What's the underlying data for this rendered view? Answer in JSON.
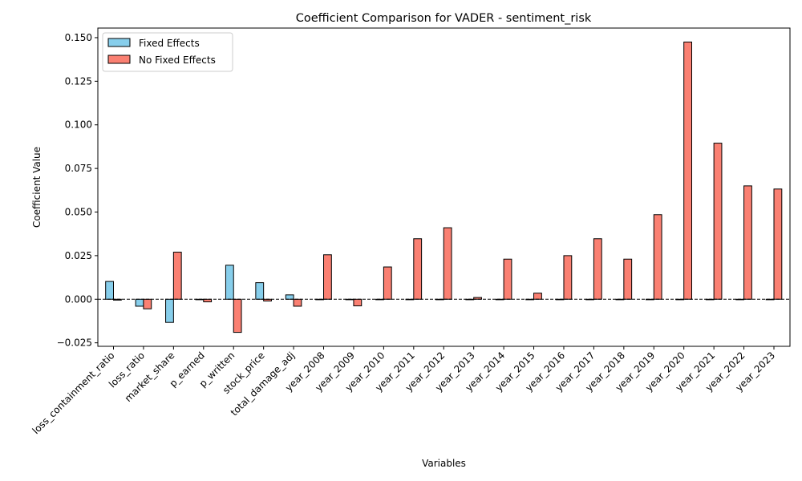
{
  "chart_data": {
    "type": "bar",
    "title": "Coefficient Comparison for VADER - sentiment_risk",
    "xlabel": "Variables",
    "ylabel": "Coefficient Value",
    "ylim": [
      -0.027,
      0.1555
    ],
    "yticks": [
      "−0.025",
      "0.000",
      "0.025",
      "0.050",
      "0.075",
      "0.100",
      "0.125",
      "0.150"
    ],
    "ytick_values": [
      -0.025,
      0,
      0.025,
      0.05,
      0.075,
      0.1,
      0.125,
      0.15
    ],
    "grid": false,
    "legend_position": "top-left",
    "zero_line": "dashed",
    "categories": [
      "loss_containment_ratio",
      "loss_ratio",
      "market_share",
      "p_earned",
      "p_written",
      "stock_price",
      "total_damage_adj",
      "year_2008",
      "year_2009",
      "year_2010",
      "year_2011",
      "year_2012",
      "year_2013",
      "year_2014",
      "year_2015",
      "year_2016",
      "year_2017",
      "year_2018",
      "year_2019",
      "year_2020",
      "year_2021",
      "year_2022",
      "year_2023"
    ],
    "series": [
      {
        "name": "Fixed Effects",
        "color": "#87ceeb",
        "values": [
          0.0102,
          -0.004,
          -0.0133,
          -0.0002,
          0.0195,
          0.0095,
          0.0025,
          0,
          0,
          0,
          0,
          0,
          0,
          0,
          0,
          0,
          0,
          0,
          0,
          0,
          0,
          0,
          0
        ]
      },
      {
        "name": "No Fixed Effects",
        "color": "#fa8072",
        "values": [
          -0.0005,
          -0.0055,
          0.027,
          -0.0015,
          -0.019,
          -0.001,
          -0.004,
          0.0255,
          -0.0038,
          0.0185,
          0.0347,
          0.041,
          0.001,
          0.023,
          0.0035,
          0.025,
          0.0347,
          0.023,
          0.0485,
          0.1475,
          0.0895,
          0.065,
          0.0632
        ]
      }
    ]
  }
}
